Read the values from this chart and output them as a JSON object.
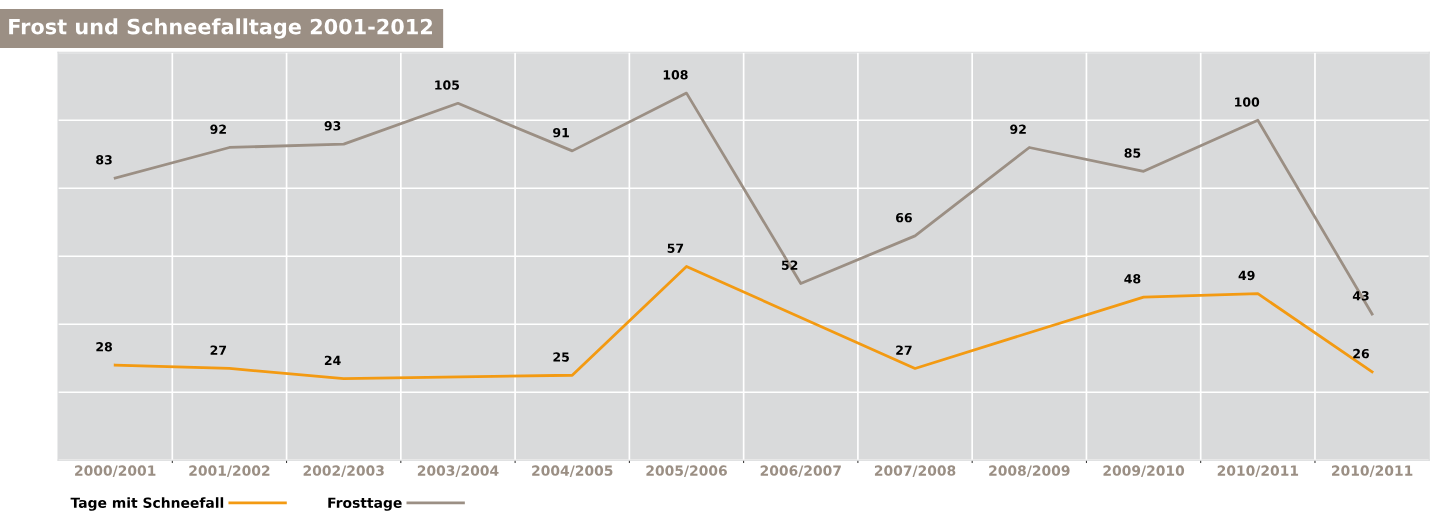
{
  "chart_data": {
    "type": "line",
    "title": "Frost und Schneefalltage 2001-2012",
    "categories": [
      "2000/2001",
      "2001/2002",
      "2002/2003",
      "2003/2004",
      "2004/2005",
      "2005/2006",
      "2006/2007",
      "2007/2008",
      "2008/2009",
      "2009/2010",
      "2010/2011",
      "2010/2011"
    ],
    "series": [
      {
        "name": "Tage mit Schneefall",
        "color": "#f39a12",
        "values": [
          28,
          27,
          24,
          null,
          25,
          57,
          null,
          27,
          null,
          48,
          49,
          26
        ]
      },
      {
        "name": "Frosttage",
        "color": "#9b8f84",
        "values": [
          83,
          92,
          93,
          105,
          91,
          108,
          52,
          66,
          92,
          85,
          100,
          43
        ]
      }
    ],
    "ylim": [
      0,
      120
    ],
    "yticks": [
      {
        "value": 0,
        "label": null
      },
      {
        "value": 20,
        "label": null
      },
      {
        "value": 40,
        "label": null
      },
      {
        "value": 60,
        "label": null
      },
      {
        "value": 80,
        "label": null
      },
      {
        "value": 100,
        "label": null
      },
      {
        "value": 120,
        "label": null
      }
    ],
    "tick_labels": "x",
    "grid": true,
    "data_labels": true,
    "legend": "bottom",
    "marker": "none",
    "line_style": "solid"
  }
}
